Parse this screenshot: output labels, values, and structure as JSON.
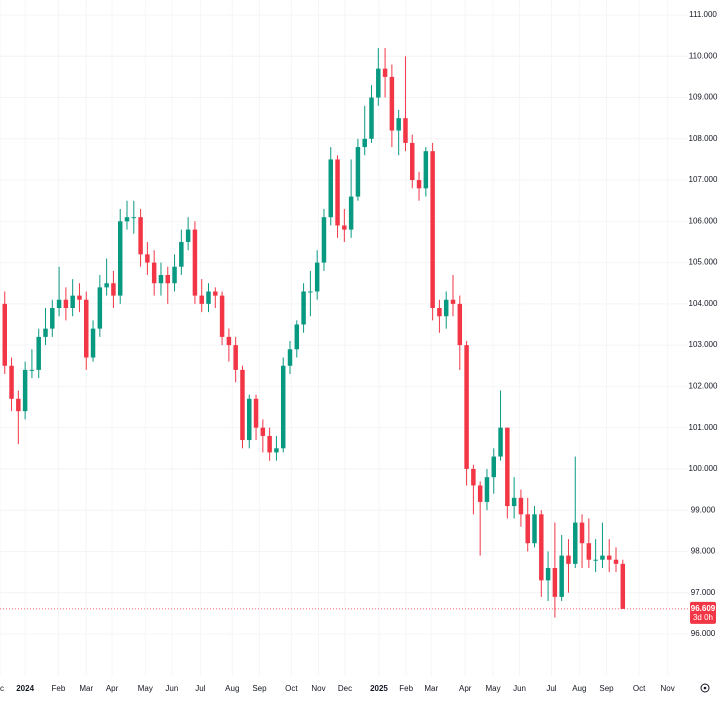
{
  "chart_data": {
    "type": "candlestick",
    "up_color": "#089981",
    "down_color": "#f23645",
    "grid": true,
    "ylim": [
      96,
      111
    ],
    "yticks": [
      {
        "value": 96,
        "label": "96.000"
      },
      {
        "value": 97,
        "label": "97.000"
      },
      {
        "value": 98,
        "label": "98.000"
      },
      {
        "value": 99,
        "label": "99.000"
      },
      {
        "value": 100,
        "label": "100.000"
      },
      {
        "value": 101,
        "label": "101.000"
      },
      {
        "value": 102,
        "label": "102.000"
      },
      {
        "value": 103,
        "label": "103.000"
      },
      {
        "value": 104,
        "label": "104.000"
      },
      {
        "value": 105,
        "label": "105.000"
      },
      {
        "value": 106,
        "label": "106.000"
      },
      {
        "value": 107,
        "label": "107.000"
      },
      {
        "value": 108,
        "label": "108.000"
      },
      {
        "value": 109,
        "label": "109.000"
      },
      {
        "value": 110,
        "label": "110.000"
      },
      {
        "value": 111,
        "label": "111.000"
      }
    ],
    "xlim": [
      -0.7,
      100.6
    ],
    "xticks": [
      {
        "value": -0.7,
        "label": "c"
      },
      {
        "value": 3.0,
        "label": "2024"
      },
      {
        "value": 7.9,
        "label": "Feb"
      },
      {
        "value": 12.0,
        "label": "Mar"
      },
      {
        "value": 15.8,
        "label": "Apr"
      },
      {
        "value": 20.7,
        "label": "May"
      },
      {
        "value": 24.6,
        "label": "Jun"
      },
      {
        "value": 28.8,
        "label": "Jul"
      },
      {
        "value": 33.5,
        "label": "Aug"
      },
      {
        "value": 37.5,
        "label": "Sep"
      },
      {
        "value": 42.2,
        "label": "Oct"
      },
      {
        "value": 46.2,
        "label": "Nov"
      },
      {
        "value": 50.1,
        "label": "Dec"
      },
      {
        "value": 55.1,
        "label": "2025"
      },
      {
        "value": 59.1,
        "label": "Feb"
      },
      {
        "value": 62.8,
        "label": "Mar"
      },
      {
        "value": 67.8,
        "label": "Apr"
      },
      {
        "value": 71.9,
        "label": "May"
      },
      {
        "value": 75.8,
        "label": "Jun"
      },
      {
        "value": 80.5,
        "label": "Jul"
      },
      {
        "value": 84.6,
        "label": "Aug"
      },
      {
        "value": 88.6,
        "label": "Sep"
      },
      {
        "value": 93.4,
        "label": "Oct"
      },
      {
        "value": 97.6,
        "label": "Nov"
      }
    ],
    "open": [
      104.0,
      102.5,
      101.7,
      101.4,
      102.4,
      102.4,
      103.2,
      103.4,
      103.9,
      104.1,
      103.9,
      104.2,
      104.1,
      102.7,
      103.4,
      104.4,
      104.5,
      104.2,
      106.0,
      106.1,
      106.1,
      105.2,
      105.0,
      104.5,
      104.7,
      104.5,
      104.9,
      105.5,
      105.8,
      104.2,
      104.0,
      104.3,
      104.2,
      103.2,
      103.0,
      102.4,
      100.7,
      101.7,
      101.0,
      100.8,
      100.4,
      100.5,
      102.5,
      102.9,
      103.5,
      104.3,
      104.3,
      105.0,
      106.1,
      107.5,
      105.9,
      105.8,
      106.6,
      107.8,
      108.0,
      109.0,
      109.7,
      109.5,
      108.2,
      108.5,
      107.9,
      107.0,
      106.8,
      107.7,
      103.9,
      103.7,
      104.1,
      104.0,
      103.0,
      100.0,
      99.6,
      99.2,
      99.8,
      100.3,
      101.0,
      99.1,
      99.3,
      98.9,
      98.2,
      98.9,
      97.3,
      97.6,
      96.9,
      97.9,
      97.7,
      98.7,
      98.2,
      97.8,
      97.8,
      97.9,
      97.8,
      97.7
    ],
    "high": [
      104.3,
      102.7,
      101.9,
      102.6,
      102.9,
      103.4,
      103.9,
      104.1,
      104.9,
      104.4,
      104.6,
      104.5,
      104.3,
      103.6,
      104.7,
      105.1,
      104.8,
      106.3,
      106.5,
      106.5,
      106.3,
      105.5,
      105.3,
      105.0,
      104.9,
      105.2,
      105.8,
      106.1,
      106.0,
      104.6,
      104.5,
      104.4,
      104.3,
      103.4,
      103.2,
      102.5,
      101.8,
      101.8,
      101.2,
      101.0,
      100.8,
      102.7,
      103.1,
      103.6,
      104.5,
      104.8,
      105.3,
      106.3,
      107.8,
      107.6,
      106.3,
      107.5,
      108.0,
      108.8,
      109.3,
      110.2,
      110.2,
      109.8,
      108.7,
      110.0,
      108.1,
      107.2,
      107.8,
      107.9,
      104.1,
      104.3,
      104.7,
      104.2,
      103.1,
      100.1,
      99.7,
      100.0,
      100.5,
      101.9,
      101.0,
      99.8,
      99.5,
      99.3,
      99.1,
      99.0,
      98.0,
      98.7,
      98.4,
      98.3,
      100.3,
      98.9,
      98.8,
      98.3,
      98.7,
      98.3,
      98.1,
      97.8
    ],
    "low": [
      102.3,
      101.4,
      100.6,
      101.2,
      102.2,
      102.2,
      103.0,
      103.2,
      103.7,
      103.6,
      103.7,
      103.8,
      102.4,
      102.6,
      103.2,
      104.2,
      103.9,
      104.0,
      105.8,
      105.7,
      104.9,
      104.7,
      104.2,
      104.2,
      104.0,
      104.3,
      104.7,
      105.3,
      104.0,
      103.8,
      103.8,
      103.9,
      103.0,
      102.6,
      102.1,
      100.5,
      100.5,
      100.7,
      100.4,
      100.2,
      100.2,
      100.4,
      102.3,
      102.7,
      103.3,
      103.7,
      104.1,
      104.8,
      105.9,
      105.6,
      105.5,
      105.6,
      106.5,
      107.6,
      107.9,
      108.8,
      109.0,
      107.8,
      107.6,
      107.7,
      106.8,
      106.5,
      106.6,
      103.6,
      103.3,
      103.4,
      103.7,
      102.4,
      99.6,
      98.9,
      97.9,
      99.0,
      99.4,
      100.2,
      98.8,
      98.8,
      98.6,
      98.0,
      98.1,
      96.9,
      96.8,
      96.4,
      96.8,
      97.0,
      97.6,
      97.6,
      97.6,
      97.5,
      97.6,
      97.5,
      97.5,
      96.609
    ],
    "close": [
      102.5,
      101.7,
      101.4,
      102.4,
      102.4,
      103.2,
      103.4,
      103.9,
      104.1,
      103.9,
      104.2,
      104.1,
      102.7,
      103.4,
      104.4,
      104.5,
      104.2,
      106.0,
      106.1,
      106.1,
      105.2,
      105.0,
      104.5,
      104.7,
      104.5,
      104.9,
      105.5,
      105.8,
      104.2,
      104.0,
      104.3,
      104.2,
      103.2,
      103.0,
      102.4,
      100.7,
      101.7,
      101.0,
      100.8,
      100.4,
      100.5,
      102.5,
      102.9,
      103.5,
      104.3,
      104.3,
      105.0,
      106.1,
      107.5,
      105.9,
      105.8,
      106.6,
      107.8,
      108.0,
      109.0,
      109.7,
      109.5,
      108.2,
      108.5,
      107.9,
      107.0,
      106.8,
      107.7,
      103.9,
      103.7,
      104.1,
      104.0,
      103.0,
      100.0,
      99.6,
      99.2,
      99.8,
      100.3,
      101.0,
      99.1,
      99.3,
      98.9,
      98.2,
      98.9,
      97.3,
      97.6,
      96.9,
      97.9,
      97.7,
      98.7,
      98.2,
      97.8,
      97.8,
      97.9,
      97.8,
      97.7,
      96.609
    ],
    "last_price": 96.609,
    "countdown": "3d 0h"
  }
}
